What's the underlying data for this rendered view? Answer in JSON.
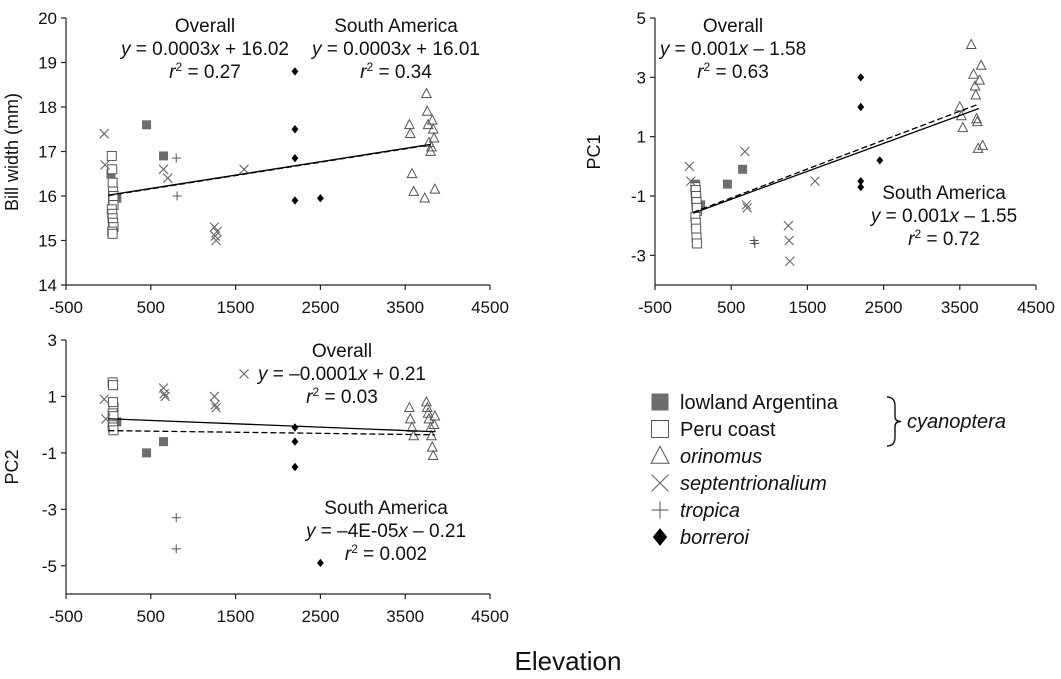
{
  "figure": {
    "x_title": "Elevation",
    "legend": {
      "items": [
        {
          "key": "lowland",
          "label": "lowland Argentina",
          "marker": "filled-square",
          "color": "#6e6e6e",
          "italic": false
        },
        {
          "key": "peru",
          "label": "Peru coast",
          "marker": "open-square",
          "color": "#555555",
          "italic": false
        },
        {
          "key": "orinomus",
          "label": "orinomus",
          "marker": "open-triangle",
          "color": "#555555",
          "italic": true
        },
        {
          "key": "sept",
          "label": "septentrionalium",
          "marker": "x-cross",
          "color": "#666666",
          "italic": true
        },
        {
          "key": "tropica",
          "label": "tropica",
          "marker": "plus",
          "color": "#555555",
          "italic": true
        },
        {
          "key": "borreroi",
          "label": "borreroi",
          "marker": "filled-diamond",
          "color": "#000000",
          "italic": true
        }
      ],
      "group_label": "cyanoptera"
    }
  },
  "chart_data": [
    {
      "type": "scatter",
      "ylabel": "Bill width (mm)",
      "xlim": [
        -500,
        4500
      ],
      "ylim": [
        14,
        20
      ],
      "x_ticks": [
        -500,
        500,
        1500,
        2500,
        3500,
        4500
      ],
      "y_ticks": [
        14,
        15,
        16,
        17,
        18,
        19,
        20
      ],
      "annotations": [
        {
          "lines": [
            "Overall",
            "y = 0.0003x + 16.02",
            "r2 = 0.27"
          ]
        },
        {
          "lines": [
            "South America",
            "y = 0.0003x + 16.01",
            "r2 = 0.34"
          ]
        }
      ],
      "regression": [
        {
          "name": "Overall",
          "style": "solid",
          "x": [
            0,
            3800
          ],
          "y": [
            16.02,
            17.16
          ]
        },
        {
          "name": "South America",
          "style": "dashed",
          "x": [
            0,
            3800
          ],
          "y": [
            16.01,
            17.15
          ]
        }
      ],
      "series": [
        {
          "key": "lowland",
          "x": [
            30,
            100,
            450,
            650
          ],
          "y": [
            16.5,
            15.95,
            17.6,
            16.9
          ]
        },
        {
          "key": "peru",
          "x": [
            40,
            45,
            50,
            55,
            60,
            40,
            45,
            50,
            55,
            60,
            45,
            50,
            55,
            60
          ],
          "y": [
            16.9,
            16.6,
            16.3,
            15.9,
            15.8,
            15.7,
            15.6,
            15.5,
            15.4,
            15.3,
            15.2,
            15.15,
            16.1,
            16.0
          ]
        },
        {
          "key": "orinomus",
          "x": [
            3550,
            3560,
            3580,
            3600,
            3750,
            3760,
            3770,
            3780,
            3800,
            3810,
            3820,
            3830,
            3840,
            3730,
            3850
          ],
          "y": [
            17.6,
            17.4,
            16.5,
            16.1,
            18.3,
            17.9,
            17.6,
            17.2,
            17.0,
            17.1,
            17.7,
            17.5,
            17.3,
            15.95,
            16.15
          ]
        },
        {
          "key": "sept",
          "x": [
            -50,
            -40,
            650,
            700,
            1250,
            1260,
            1270,
            1280,
            1600
          ],
          "y": [
            17.4,
            16.7,
            16.6,
            16.4,
            15.3,
            15.1,
            15.0,
            15.2,
            16.6
          ]
        },
        {
          "key": "tropica",
          "x": [
            800,
            810
          ],
          "y": [
            16.85,
            16.0
          ]
        },
        {
          "key": "borreroi",
          "x": [
            2200,
            2200,
            2200,
            2200,
            2500
          ],
          "y": [
            18.8,
            17.5,
            16.85,
            15.9,
            15.95
          ]
        }
      ]
    },
    {
      "type": "scatter",
      "ylabel": "PC1",
      "xlim": [
        -500,
        4500
      ],
      "ylim": [
        -4,
        5
      ],
      "x_ticks": [
        -500,
        500,
        1500,
        2500,
        3500,
        4500
      ],
      "y_ticks": [
        -3,
        -1,
        1,
        3,
        5
      ],
      "annotations": [
        {
          "lines": [
            "Overall",
            "y = 0.001x – 1.58",
            "r2 = 0.63"
          ]
        },
        {
          "lines": [
            "South America",
            "y = 0.001x – 1.55",
            "r2 = 0.72"
          ]
        }
      ],
      "regression": [
        {
          "name": "Overall",
          "style": "solid",
          "x": [
            0,
            3750
          ],
          "y": [
            -1.58,
            1.95
          ]
        },
        {
          "name": "South America",
          "style": "dashed",
          "x": [
            0,
            3750
          ],
          "y": [
            -1.55,
            2.1
          ]
        }
      ],
      "series": [
        {
          "key": "lowland",
          "x": [
            30,
            100,
            450,
            650
          ],
          "y": [
            -0.6,
            -1.3,
            -0.6,
            -0.1
          ]
        },
        {
          "key": "peru",
          "x": [
            30,
            35,
            40,
            45,
            50,
            30,
            35,
            40,
            45,
            50,
            35,
            40,
            45,
            50
          ],
          "y": [
            -0.7,
            -0.9,
            -1.1,
            -1.3,
            -1.5,
            -1.7,
            -1.9,
            -2.1,
            -2.4,
            -2.6,
            -0.8,
            -1.0,
            -1.2,
            -1.4
          ]
        },
        {
          "key": "orinomus",
          "x": [
            3500,
            3520,
            3540,
            3650,
            3680,
            3700,
            3710,
            3720,
            3730,
            3740,
            3760,
            3780,
            3800
          ],
          "y": [
            2.0,
            1.7,
            1.3,
            4.1,
            3.1,
            2.7,
            2.4,
            1.6,
            1.5,
            0.6,
            2.9,
            3.4,
            0.7
          ]
        },
        {
          "key": "sept",
          "x": [
            -50,
            -30,
            680,
            700,
            710,
            1250,
            1260,
            1270,
            1600
          ],
          "y": [
            0.0,
            -0.5,
            0.5,
            -1.3,
            -1.4,
            -2.0,
            -2.5,
            -3.2,
            -0.5
          ]
        },
        {
          "key": "tropica",
          "x": [
            800,
            810
          ],
          "y": [
            -2.5,
            -2.6
          ]
        },
        {
          "key": "borreroi",
          "x": [
            2200,
            2200,
            2200,
            2200,
            2450
          ],
          "y": [
            3.0,
            2.0,
            -0.5,
            -0.7,
            0.2
          ]
        }
      ]
    },
    {
      "type": "scatter",
      "ylabel": "PC2",
      "xlim": [
        -500,
        4500
      ],
      "ylim": [
        -6,
        3
      ],
      "x_ticks": [
        -500,
        500,
        1500,
        2500,
        3500,
        4500
      ],
      "y_ticks": [
        -5,
        -3,
        -1,
        1,
        3
      ],
      "annotations": [
        {
          "lines": [
            "Overall",
            "y = –0.0001x + 0.21",
            "r2 = 0.03"
          ]
        },
        {
          "lines": [
            "South America",
            "y = –4E-05x – 0.21",
            "r2 = 0.002"
          ]
        }
      ],
      "regression": [
        {
          "name": "Overall",
          "style": "solid",
          "x": [
            0,
            3850
          ],
          "y": [
            0.21,
            -0.25
          ]
        },
        {
          "name": "South America",
          "style": "dashed",
          "x": [
            0,
            3850
          ],
          "y": [
            -0.21,
            -0.36
          ]
        }
      ],
      "series": [
        {
          "key": "lowland",
          "x": [
            100,
            450,
            650
          ],
          "y": [
            0.1,
            -1.0,
            -0.6
          ]
        },
        {
          "key": "peru",
          "x": [
            50,
            55,
            60,
            50,
            55,
            60,
            50,
            55,
            60,
            55,
            60
          ],
          "y": [
            1.5,
            1.4,
            0.6,
            0.4,
            0.2,
            0.1,
            0.0,
            -0.1,
            -0.2,
            0.8,
            0.3
          ]
        },
        {
          "key": "orinomus",
          "x": [
            3550,
            3560,
            3580,
            3600,
            3750,
            3760,
            3770,
            3780,
            3800,
            3810,
            3820,
            3830,
            3840,
            3850
          ],
          "y": [
            0.6,
            0.2,
            -0.1,
            -0.4,
            0.8,
            0.6,
            0.4,
            0.2,
            -0.1,
            -0.4,
            -0.8,
            -1.1,
            0.0,
            0.3
          ]
        },
        {
          "key": "sept",
          "x": [
            -50,
            -30,
            650,
            660,
            670,
            1250,
            1260,
            1270,
            1600
          ],
          "y": [
            0.9,
            0.2,
            1.3,
            1.1,
            1.0,
            1.0,
            0.7,
            0.6,
            1.8
          ]
        },
        {
          "key": "tropica",
          "x": [
            800,
            800
          ],
          "y": [
            -3.3,
            -4.4
          ]
        },
        {
          "key": "borreroi",
          "x": [
            2200,
            2200,
            2200,
            2500
          ],
          "y": [
            -0.1,
            -0.6,
            -1.5,
            -4.9
          ]
        }
      ]
    }
  ]
}
